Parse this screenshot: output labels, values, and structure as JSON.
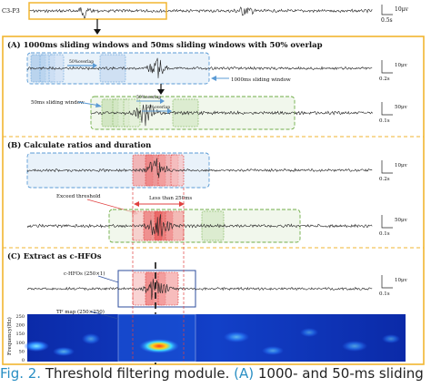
{
  "top": {
    "channel": "C3-P3",
    "scale_amp": "10μv",
    "scale_time": "0.5s"
  },
  "panel_a": {
    "title": "(A) 1000ms sliding windows and 50ms sliding windows with 50% overlap",
    "label_50overlap_1": "50%overlap",
    "label_1000ms": "1000ms sliding window",
    "label_50ms": "50ms sliding window",
    "label_50overlap_2": "50%overlap",
    "label_50overlap_3": "50%overlap",
    "scale1_amp": "10μv",
    "scale1_time": "0.2s",
    "scale2_amp": "50μv",
    "scale2_time": "0.1s"
  },
  "panel_b": {
    "title": "(B) Calculate ratios and duration",
    "label_exceed": "Exceed threshold",
    "label_less": "Less than 250ms",
    "scale1_amp": "10μv",
    "scale1_time": "0.2s",
    "scale2_amp": "50μv",
    "scale2_time": "0.1s"
  },
  "panel_c": {
    "title": "(C) Extract as c-HFOs",
    "label_chfo": "c-HFOs (250×1)",
    "label_tfmap": "TF map (250×250)",
    "ylabel": "Frequency(Hz)",
    "yticks": [
      "250",
      "200",
      "150",
      "100",
      "50",
      "0"
    ],
    "scale_amp": "10μv",
    "scale_time": "0.1s"
  },
  "caption": {
    "fig": "Fig. 2.",
    "text1": " Threshold filtering module. ",
    "hl1": "(A)",
    "text2": " 1000- and 50-ms sliding"
  },
  "colors": {
    "frame": "#f2b630",
    "blue_window": "#5b9bd5",
    "green_window": "#70ad47",
    "red_window": "#e04040"
  }
}
